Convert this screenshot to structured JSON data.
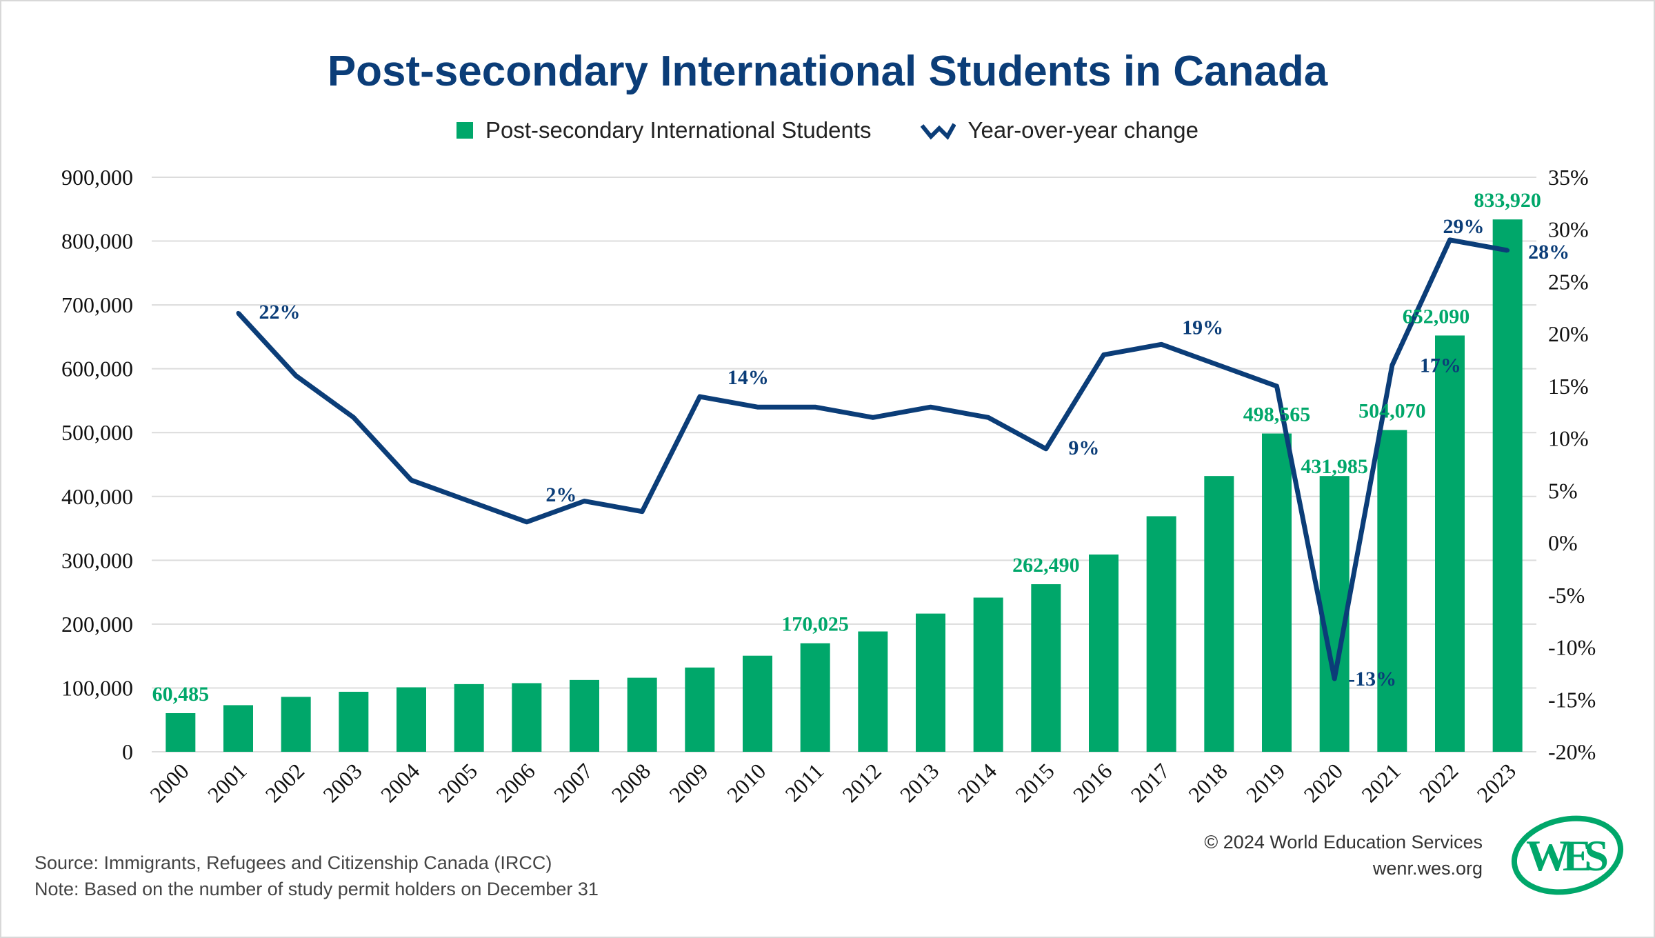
{
  "chart_data": {
    "type": "bar+line",
    "title": "Post-secondary International Students in Canada",
    "categories": [
      "2000",
      "2001",
      "2002",
      "2003",
      "2004",
      "2005",
      "2006",
      "2007",
      "2008",
      "2009",
      "2010",
      "2011",
      "2012",
      "2013",
      "2014",
      "2015",
      "2016",
      "2017",
      "2018",
      "2019",
      "2020",
      "2021",
      "2022",
      "2023"
    ],
    "series": [
      {
        "name": "Post-secondary International Students",
        "type": "bar",
        "axis": "left",
        "color": "#00a76a",
        "values": [
          60485,
          73000,
          86000,
          94000,
          101000,
          106000,
          107500,
          112500,
          116000,
          132000,
          150500,
          170025,
          188500,
          216500,
          241500,
          262490,
          309000,
          369000,
          432000,
          498565,
          431985,
          504070,
          652090,
          833920
        ],
        "labels": [
          "60,485",
          null,
          null,
          null,
          null,
          null,
          null,
          null,
          null,
          null,
          null,
          "170,025",
          null,
          null,
          null,
          "262,490",
          null,
          null,
          null,
          "498,565",
          "431,985",
          "504,070",
          "652,090",
          "833,920"
        ]
      },
      {
        "name": "Year-over-year change",
        "type": "line",
        "axis": "right",
        "color": "#0b3d78",
        "values": [
          null,
          22,
          16,
          12,
          6,
          4,
          2,
          4,
          3,
          14,
          13,
          13,
          12,
          13,
          12,
          9,
          18,
          19,
          17,
          15,
          -13,
          17,
          29,
          28
        ],
        "labels": [
          null,
          "22%",
          null,
          null,
          null,
          null,
          "2%",
          null,
          null,
          "14%",
          null,
          null,
          null,
          null,
          null,
          "9%",
          null,
          "19%",
          null,
          null,
          "-13%",
          "17%",
          "29%",
          "28%"
        ]
      }
    ],
    "y_left": {
      "range": [
        0,
        900000
      ],
      "ticks": [
        "0",
        "100,000",
        "200,000",
        "300,000",
        "400,000",
        "500,000",
        "600,000",
        "700,000",
        "800,000",
        "900,000"
      ]
    },
    "y_right": {
      "range": [
        -20,
        35
      ],
      "ticks": [
        "-20%",
        "-15%",
        "-10%",
        "-5%",
        "0%",
        "5%",
        "10%",
        "15%",
        "20%",
        "25%",
        "30%",
        "35%"
      ]
    },
    "grid": true,
    "legend": "top-center"
  },
  "footer": {
    "source": "Source: Immigrants, Refugees and Citizenship Canada (IRCC)",
    "note": "Note: Based on the number of study permit holders on December 31",
    "copyright": "© 2024 World Education Services",
    "url": "wenr.wes.org",
    "logo_text": "WES"
  }
}
